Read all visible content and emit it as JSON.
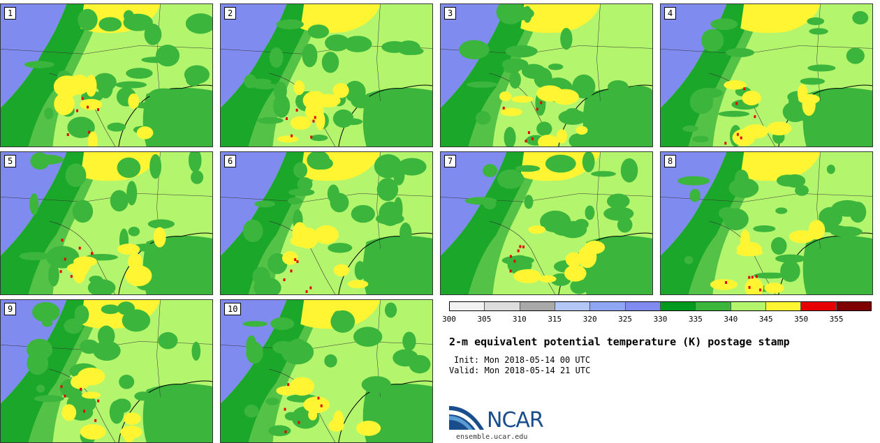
{
  "panels": [
    {
      "label": "1"
    },
    {
      "label": "2"
    },
    {
      "label": "3"
    },
    {
      "label": "4"
    },
    {
      "label": "5"
    },
    {
      "label": "6"
    },
    {
      "label": "7"
    },
    {
      "label": "8"
    },
    {
      "label": "9"
    },
    {
      "label": "10"
    }
  ],
  "colorbar": {
    "colors": [
      "#f2f2f2",
      "#dcdcdc",
      "#a9a9a9",
      "#b3c7f7",
      "#8ea6f4",
      "#7f8bef",
      "#009a1f",
      "#3cb53c",
      "#b4f56e",
      "#fff533",
      "#e70000",
      "#7f0000"
    ],
    "ticks": [
      "300",
      "305",
      "310",
      "315",
      "320",
      "325",
      "330",
      "335",
      "340",
      "345",
      "350",
      "355"
    ]
  },
  "title": "2-m equivalent potential temperature (K) postage stamp",
  "init": "Init: Mon 2018-05-14 00 UTC",
  "valid": "Valid: Mon 2018-05-14 21 UTC",
  "logo": {
    "text": "NCAR",
    "url": "ensemble.ucar.edu"
  },
  "map_colors": {
    "cold_ocean": "#7f8bef",
    "green_dark": "#009a1f",
    "green": "#3cb53c",
    "light_green": "#b4f56e",
    "yellow": "#fff533",
    "red": "#e70000"
  }
}
